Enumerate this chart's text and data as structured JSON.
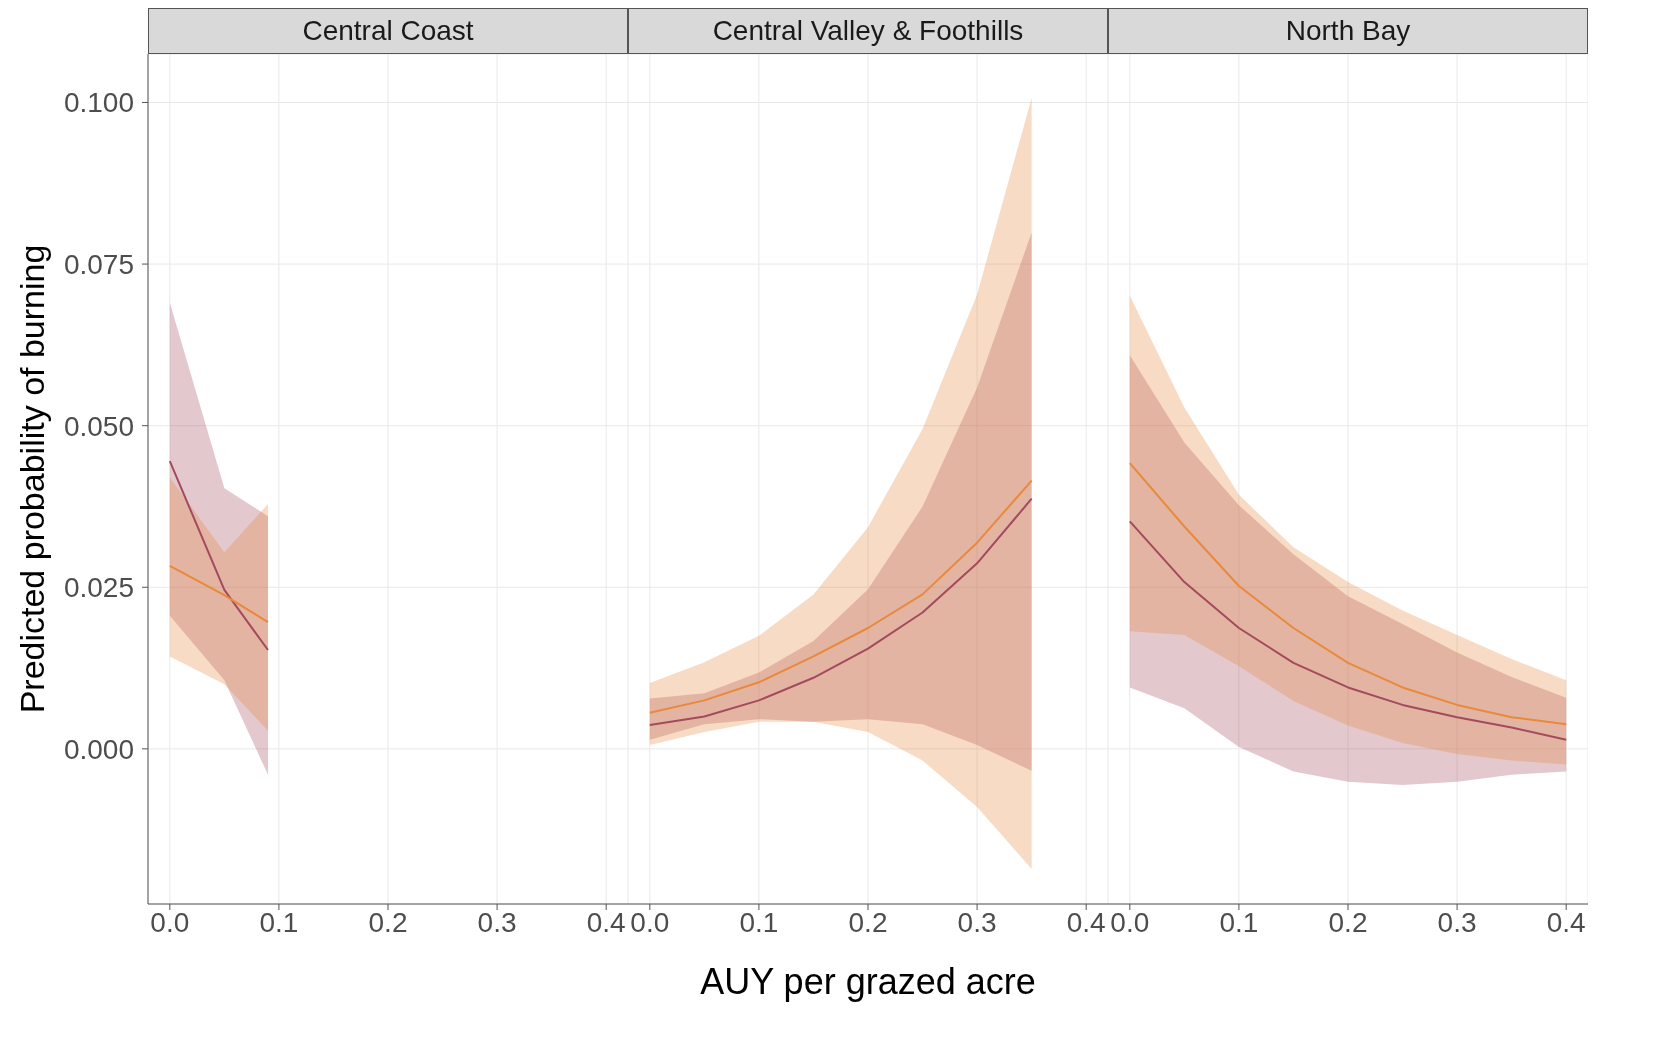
{
  "chart_data": [
    {
      "type": "line",
      "title": "Central Coast",
      "ylabel": "Predicted probability of burning",
      "xlim": [
        -0.02,
        0.42
      ],
      "xticks": [
        {
          "value": 0,
          "label": "0.0"
        },
        {
          "value": 0.1,
          "label": "0.1"
        },
        {
          "value": 0.2,
          "label": "0.2"
        },
        {
          "value": 0.3,
          "label": "0.3"
        },
        {
          "value": 0.4,
          "label": "0.4"
        }
      ],
      "ylim": [
        -0.024,
        0.1075
      ],
      "yticks": [
        {
          "value": 0,
          "label": "0.000"
        },
        {
          "value": 0.025,
          "label": "0.025"
        },
        {
          "value": 0.05,
          "label": "0.050"
        },
        {
          "value": 0.075,
          "label": "0.075"
        },
        {
          "value": 0.1,
          "label": "0.100"
        }
      ],
      "grid": true,
      "series": [
        {
          "color": "#a34a5e",
          "x": [
            0,
            0.05,
            0.09
          ],
          "values": [
            0.0445,
            0.0246,
            0.0153
          ],
          "lower": [
            0.0206,
            0.0106,
            -0.004
          ],
          "upper": [
            0.069,
            0.0403,
            0.036
          ]
        },
        {
          "color": "#e8893b",
          "x": [
            0,
            0.05,
            0.09
          ],
          "values": [
            0.0283,
            0.0238,
            0.0196
          ],
          "lower": [
            0.0143,
            0.01,
            0.0028
          ],
          "upper": [
            0.042,
            0.0304,
            0.0379
          ]
        }
      ]
    },
    {
      "type": "line",
      "title": "Central Valley & Foothills",
      "xlabel": "AUY per grazed acre",
      "tick_labels": "x",
      "xlim": [
        -0.02,
        0.42
      ],
      "xticks": [
        {
          "value": 0,
          "label": "0.0"
        },
        {
          "value": 0.1,
          "label": "0.1"
        },
        {
          "value": 0.2,
          "label": "0.2"
        },
        {
          "value": 0.3,
          "label": "0.3"
        },
        {
          "value": 0.4,
          "label": "0.4"
        }
      ],
      "ylim": [
        -0.024,
        0.1075
      ],
      "yticks": [
        {
          "value": 0,
          "label": null
        },
        {
          "value": 0.025,
          "label": null
        },
        {
          "value": 0.05,
          "label": null
        },
        {
          "value": 0.075,
          "label": null
        },
        {
          "value": 0.1,
          "label": null
        }
      ],
      "grid": true,
      "series": [
        {
          "color": "#a34a5e",
          "x": [
            0,
            0.05,
            0.1,
            0.15,
            0.2,
            0.25,
            0.3,
            0.35
          ],
          "values": [
            0.0037,
            0.005,
            0.0075,
            0.011,
            0.0155,
            0.0211,
            0.0287,
            0.0387
          ],
          "lower": [
            0.0014,
            0.0038,
            0.0046,
            0.0042,
            0.0046,
            0.0038,
            0.0006,
            -0.0034
          ],
          "upper": [
            0.0078,
            0.0086,
            0.0118,
            0.0167,
            0.0247,
            0.0375,
            0.0559,
            0.0799
          ]
        },
        {
          "color": "#e8893b",
          "x": [
            0,
            0.05,
            0.1,
            0.15,
            0.2,
            0.25,
            0.3,
            0.35
          ],
          "values": [
            0.0056,
            0.0075,
            0.0103,
            0.0143,
            0.0187,
            0.0239,
            0.0319,
            0.0415
          ],
          "lower": [
            0.0006,
            0.0026,
            0.0042,
            0.0042,
            0.0026,
            -0.0018,
            -0.009,
            -0.0186
          ],
          "upper": [
            0.0102,
            0.0134,
            0.0175,
            0.0239,
            0.0343,
            0.0495,
            0.0703,
            0.1007
          ]
        }
      ]
    },
    {
      "type": "line",
      "title": "North Bay",
      "tick_labels": "x",
      "xlim": [
        -0.02,
        0.42
      ],
      "xticks": [
        {
          "value": 0,
          "label": "0.0"
        },
        {
          "value": 0.1,
          "label": "0.1"
        },
        {
          "value": 0.2,
          "label": "0.2"
        },
        {
          "value": 0.3,
          "label": "0.3"
        },
        {
          "value": 0.4,
          "label": "0.4"
        }
      ],
      "ylim": [
        -0.024,
        0.1075
      ],
      "yticks": [
        {
          "value": 0,
          "label": null
        },
        {
          "value": 0.025,
          "label": null
        },
        {
          "value": 0.05,
          "label": null
        },
        {
          "value": 0.075,
          "label": null
        },
        {
          "value": 0.1,
          "label": null
        }
      ],
      "grid": true,
      "series": [
        {
          "color": "#a34a5e",
          "x": [
            0,
            0.05,
            0.1,
            0.15,
            0.2,
            0.25,
            0.3,
            0.35,
            0.4
          ],
          "values": [
            0.0352,
            0.0258,
            0.0187,
            0.0133,
            0.0095,
            0.0068,
            0.0049,
            0.0033,
            0.0014
          ],
          "lower": [
            0.0095,
            0.0063,
            0.0003,
            -0.0035,
            -0.0051,
            -0.0056,
            -0.0051,
            -0.004,
            -0.0035
          ],
          "upper": [
            0.0609,
            0.0474,
            0.0377,
            0.0301,
            0.0236,
            0.0193,
            0.0149,
            0.0111,
            0.0079
          ]
        },
        {
          "color": "#e8893b",
          "x": [
            0,
            0.05,
            0.1,
            0.15,
            0.2,
            0.25,
            0.3,
            0.35,
            0.4
          ],
          "values": [
            0.0442,
            0.0344,
            0.0252,
            0.0187,
            0.0133,
            0.0095,
            0.0068,
            0.0049,
            0.0038
          ],
          "lower": [
            0.0182,
            0.0176,
            0.0128,
            0.0074,
            0.0036,
            0.0009,
            -0.0008,
            -0.0018,
            -0.0024
          ],
          "upper": [
            0.0701,
            0.0528,
            0.0393,
            0.0312,
            0.0258,
            0.0214,
            0.0176,
            0.0139,
            0.0106
          ]
        }
      ]
    }
  ]
}
